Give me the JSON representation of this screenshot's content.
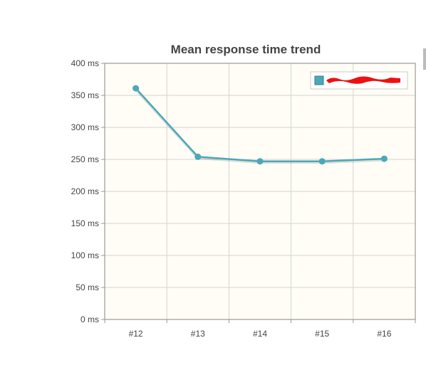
{
  "chart_data": {
    "type": "line",
    "title": "Mean response time trend",
    "xlabel": "",
    "ylabel": "",
    "categories": [
      "#12",
      "#13",
      "#14",
      "#15",
      "#16"
    ],
    "series": [
      {
        "values": [
          361,
          254,
          247,
          247,
          251
        ]
      }
    ],
    "ylim": [
      0,
      400
    ],
    "yticks": [
      0,
      50,
      100,
      150,
      200,
      250,
      300,
      350,
      400
    ],
    "ytick_labels": [
      "0 ms",
      "50 ms",
      "100 ms",
      "150 ms",
      "200 ms",
      "250 ms",
      "300 ms",
      "350 ms",
      "400 ms"
    ],
    "grid": true,
    "legend": {
      "placement": "top-right",
      "redacted": true
    },
    "colors": {
      "line": "#4aa8b8",
      "plot_background": "#fffdf6",
      "grid": "#d4d4d4",
      "axis": "#999999",
      "legend_swatch": "#4aa8b8",
      "redaction": "#ee1111"
    }
  }
}
